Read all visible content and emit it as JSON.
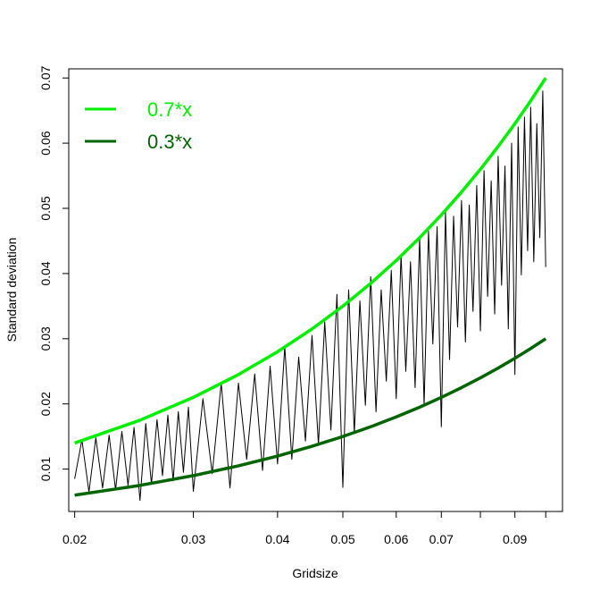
{
  "chart_data": {
    "type": "line",
    "xlabel": "Gridsize",
    "ylabel": "Standard deviation",
    "x_scale": "log",
    "xlim": [
      0.0196,
      0.1059
    ],
    "ylim": [
      0.0035,
      0.0714
    ],
    "x_ticks": [
      0.02,
      0.03,
      0.04,
      0.05,
      0.06,
      0.07,
      0.08,
      0.09,
      0.1
    ],
    "x_tick_labels": [
      "0.02",
      "0.03",
      "0.04",
      "0.05",
      "0.06",
      "0.07",
      "",
      "0.09",
      ""
    ],
    "y_ticks": [
      0.01,
      0.02,
      0.03,
      0.04,
      0.05,
      0.06,
      0.07
    ],
    "y_tick_labels": [
      "0.01",
      "0.02",
      "0.03",
      "0.04",
      "0.05",
      "0.06",
      "0.07"
    ],
    "grid": false,
    "legend_position": "top-left",
    "series": [
      {
        "name": "0.7*x",
        "color": "#00ee00",
        "x": [
          0.02,
          0.025,
          0.03,
          0.035,
          0.04,
          0.045,
          0.05,
          0.055,
          0.06,
          0.065,
          0.07,
          0.075,
          0.08,
          0.085,
          0.09,
          0.095,
          0.1
        ],
        "y": [
          0.014,
          0.0175,
          0.021,
          0.0245,
          0.028,
          0.0315,
          0.035,
          0.0385,
          0.042,
          0.0455,
          0.049,
          0.0525,
          0.056,
          0.0595,
          0.063,
          0.0665,
          0.07
        ]
      },
      {
        "name": "0.3*x",
        "color": "#006400",
        "x": [
          0.02,
          0.025,
          0.03,
          0.035,
          0.04,
          0.045,
          0.05,
          0.055,
          0.06,
          0.065,
          0.07,
          0.075,
          0.08,
          0.085,
          0.09,
          0.095,
          0.1
        ],
        "y": [
          0.006,
          0.0075,
          0.009,
          0.0105,
          0.012,
          0.0135,
          0.015,
          0.0165,
          0.018,
          0.0195,
          0.021,
          0.0225,
          0.024,
          0.0255,
          0.027,
          0.0285,
          0.03
        ]
      },
      {
        "color": "#000000",
        "x": [
          0.02,
          0.0205,
          0.021,
          0.0215,
          0.022,
          0.0225,
          0.023,
          0.0235,
          0.024,
          0.0245,
          0.025,
          0.0255,
          0.026,
          0.0265,
          0.027,
          0.0275,
          0.028,
          0.0285,
          0.029,
          0.0295,
          0.03,
          0.031,
          0.032,
          0.033,
          0.034,
          0.035,
          0.036,
          0.037,
          0.038,
          0.039,
          0.04,
          0.041,
          0.042,
          0.043,
          0.044,
          0.045,
          0.046,
          0.047,
          0.048,
          0.049,
          0.05,
          0.051,
          0.052,
          0.053,
          0.054,
          0.055,
          0.056,
          0.057,
          0.058,
          0.059,
          0.06,
          0.061,
          0.062,
          0.063,
          0.064,
          0.065,
          0.066,
          0.067,
          0.068,
          0.069,
          0.07,
          0.071,
          0.072,
          0.073,
          0.074,
          0.075,
          0.076,
          0.077,
          0.078,
          0.079,
          0.08,
          0.081,
          0.082,
          0.083,
          0.084,
          0.085,
          0.086,
          0.087,
          0.088,
          0.089,
          0.09,
          0.091,
          0.092,
          0.093,
          0.094,
          0.095,
          0.096,
          0.097,
          0.098,
          0.099,
          0.1
        ],
        "y": [
          0.0085,
          0.0145,
          0.0065,
          0.0148,
          0.0071,
          0.0152,
          0.0068,
          0.0158,
          0.0075,
          0.0164,
          0.0052,
          0.017,
          0.0077,
          0.0176,
          0.009,
          0.0183,
          0.0082,
          0.0188,
          0.0095,
          0.0195,
          0.0066,
          0.0208,
          0.0093,
          0.0232,
          0.0071,
          0.0232,
          0.0115,
          0.0246,
          0.0098,
          0.0258,
          0.0108,
          0.0288,
          0.0115,
          0.0272,
          0.0143,
          0.0305,
          0.0138,
          0.0326,
          0.016,
          0.0368,
          0.0072,
          0.0375,
          0.0155,
          0.0358,
          0.0198,
          0.0395,
          0.0188,
          0.0375,
          0.0235,
          0.0405,
          0.0208,
          0.0428,
          0.025,
          0.0418,
          0.0225,
          0.0455,
          0.0198,
          0.0465,
          0.0292,
          0.0472,
          0.0165,
          0.0495,
          0.0268,
          0.0488,
          0.0318,
          0.0512,
          0.0295,
          0.0505,
          0.0342,
          0.0535,
          0.0312,
          0.0558,
          0.0365,
          0.0542,
          0.0338,
          0.058,
          0.0382,
          0.0565,
          0.0315,
          0.06,
          0.0245,
          0.0625,
          0.0398,
          0.064,
          0.0435,
          0.0655,
          0.0418,
          0.063,
          0.0455,
          0.068,
          0.041
        ]
      }
    ]
  }
}
